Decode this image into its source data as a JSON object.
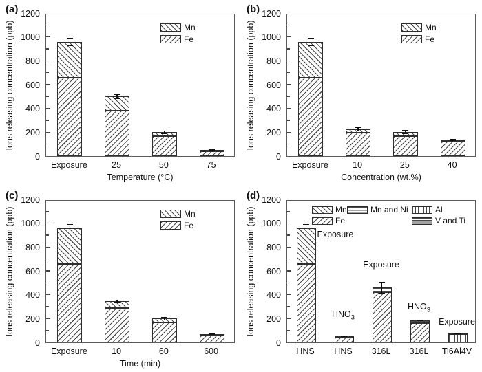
{
  "chart_data": [
    {
      "type": "stacked-bar",
      "tag": "(a)",
      "ylabel": "Ions releasing concentration (ppb)",
      "xlabel": "Temperature (°C)",
      "ylim": [
        0,
        1200
      ],
      "ytick_major": 200,
      "ytick_minor": 100,
      "unit": "ppb",
      "legend_layout": "stack",
      "legend_rows": [
        [
          "Mn"
        ],
        [
          "Fe"
        ]
      ],
      "bars": [
        {
          "label": "Exposure",
          "segments": [
            {
              "series": "Fe",
              "value": 660
            },
            {
              "series": "Mn",
              "value": 300
            }
          ],
          "err": 35,
          "ann": null
        },
        {
          "label": "25",
          "segments": [
            {
              "series": "Fe",
              "value": 380
            },
            {
              "series": "Mn",
              "value": 120
            }
          ],
          "err": 20,
          "ann": null
        },
        {
          "label": "50",
          "segments": [
            {
              "series": "Fe",
              "value": 170
            },
            {
              "series": "Mn",
              "value": 30
            }
          ],
          "err": 15,
          "ann": null
        },
        {
          "label": "75",
          "segments": [
            {
              "series": "Fe",
              "value": 42
            },
            {
              "series": "Mn",
              "value": 8
            }
          ],
          "err": 5,
          "ann": null
        }
      ]
    },
    {
      "type": "stacked-bar",
      "tag": "(b)",
      "ylabel": "Ions releasing concentration (ppb)",
      "xlabel": "Concentration (wt.%)",
      "ylim": [
        0,
        1200
      ],
      "ytick_major": 200,
      "ytick_minor": 100,
      "unit": "ppb",
      "legend_layout": "stack",
      "legend_rows": [
        [
          "Mn"
        ],
        [
          "Fe"
        ]
      ],
      "bars": [
        {
          "label": "Exposure",
          "segments": [
            {
              "series": "Fe",
              "value": 660
            },
            {
              "series": "Mn",
              "value": 300
            }
          ],
          "err": 35,
          "ann": null
        },
        {
          "label": "10",
          "segments": [
            {
              "series": "Fe",
              "value": 195
            },
            {
              "series": "Mn",
              "value": 30
            }
          ],
          "err": 15,
          "ann": null
        },
        {
          "label": "25",
          "segments": [
            {
              "series": "Fe",
              "value": 170
            },
            {
              "series": "Mn",
              "value": 30
            }
          ],
          "err": 18,
          "ann": null
        },
        {
          "label": "40",
          "segments": [
            {
              "series": "Fe",
              "value": 120
            },
            {
              "series": "Mn",
              "value": 15
            }
          ],
          "err": 8,
          "ann": null
        }
      ]
    },
    {
      "type": "stacked-bar",
      "tag": "(c)",
      "ylabel": "Ions releasing concentration (ppb)",
      "xlabel": "Time (min)",
      "ylim": [
        0,
        1200
      ],
      "ytick_major": 200,
      "ytick_minor": 100,
      "unit": "ppb",
      "legend_layout": "stack",
      "legend_rows": [
        [
          "Mn"
        ],
        [
          "Fe"
        ]
      ],
      "bars": [
        {
          "label": "Exposure",
          "segments": [
            {
              "series": "Fe",
              "value": 655
            },
            {
              "series": "Mn",
              "value": 305
            }
          ],
          "err": 35,
          "ann": null
        },
        {
          "label": "10",
          "segments": [
            {
              "series": "Fe",
              "value": 290
            },
            {
              "series": "Mn",
              "value": 55
            }
          ],
          "err": 12,
          "ann": null
        },
        {
          "label": "60",
          "segments": [
            {
              "series": "Fe",
              "value": 165
            },
            {
              "series": "Mn",
              "value": 35
            }
          ],
          "err": 15,
          "ann": null
        },
        {
          "label": "600",
          "segments": [
            {
              "series": "Fe",
              "value": 55
            },
            {
              "series": "Mn",
              "value": 15
            }
          ],
          "err": 6,
          "ann": null
        }
      ]
    },
    {
      "type": "stacked-bar",
      "tag": "(d)",
      "ylabel": "Ions releasing concentration (ppb)",
      "xlabel": "",
      "ylim": [
        0,
        1200
      ],
      "ytick_major": 200,
      "ytick_minor": 100,
      "unit": "ppb",
      "legend_layout": "grid",
      "legend_rows": [
        [
          "Mn",
          "Mn and Ni",
          "Al"
        ],
        [
          "Fe",
          "",
          "V and Ti"
        ]
      ],
      "bars": [
        {
          "label": "HNS",
          "segments": [
            {
              "series": "Fe",
              "value": 660
            },
            {
              "series": "Mn",
              "value": 300
            }
          ],
          "err": 35,
          "ann": {
            "text": "Exposure",
            "sub": "",
            "y": 870,
            "placement": "right"
          }
        },
        {
          "label": "HNS",
          "segments": [
            {
              "series": "Fe",
              "value": 45
            },
            {
              "series": "Mn",
              "value": 5
            }
          ],
          "err": 4,
          "ann": {
            "text": "HNO",
            "sub": "3",
            "y": 170,
            "placement": "above"
          }
        },
        {
          "label": "316L",
          "segments": [
            {
              "series": "Fe",
              "value": 420
            },
            {
              "series": "Mn and Ni",
              "value": 40
            }
          ],
          "err": 50,
          "ann": {
            "text": "Exposure",
            "sub": "",
            "y": 615,
            "placement": "above"
          }
        },
        {
          "label": "316L",
          "segments": [
            {
              "series": "Fe",
              "value": 160
            },
            {
              "series": "Mn and Ni",
              "value": 25
            }
          ],
          "err": 8,
          "ann": {
            "text": "HNO",
            "sub": "3",
            "y": 235,
            "placement": "above"
          }
        },
        {
          "label": "Ti6Al4V",
          "segments": [
            {
              "series": "Al",
              "value": 68
            },
            {
              "series": "V and Ti",
              "value": 7
            }
          ],
          "err": 4,
          "ann": {
            "text": "Exposure",
            "sub": "",
            "y": 140,
            "placement": "above"
          }
        }
      ]
    }
  ],
  "patterns": {
    "Mn": "diag-back",
    "Fe": "diag-fwd",
    "Mn and Ni": "horiz-sparse",
    "Al": "vert",
    "V and Ti": "horiz-dense"
  }
}
